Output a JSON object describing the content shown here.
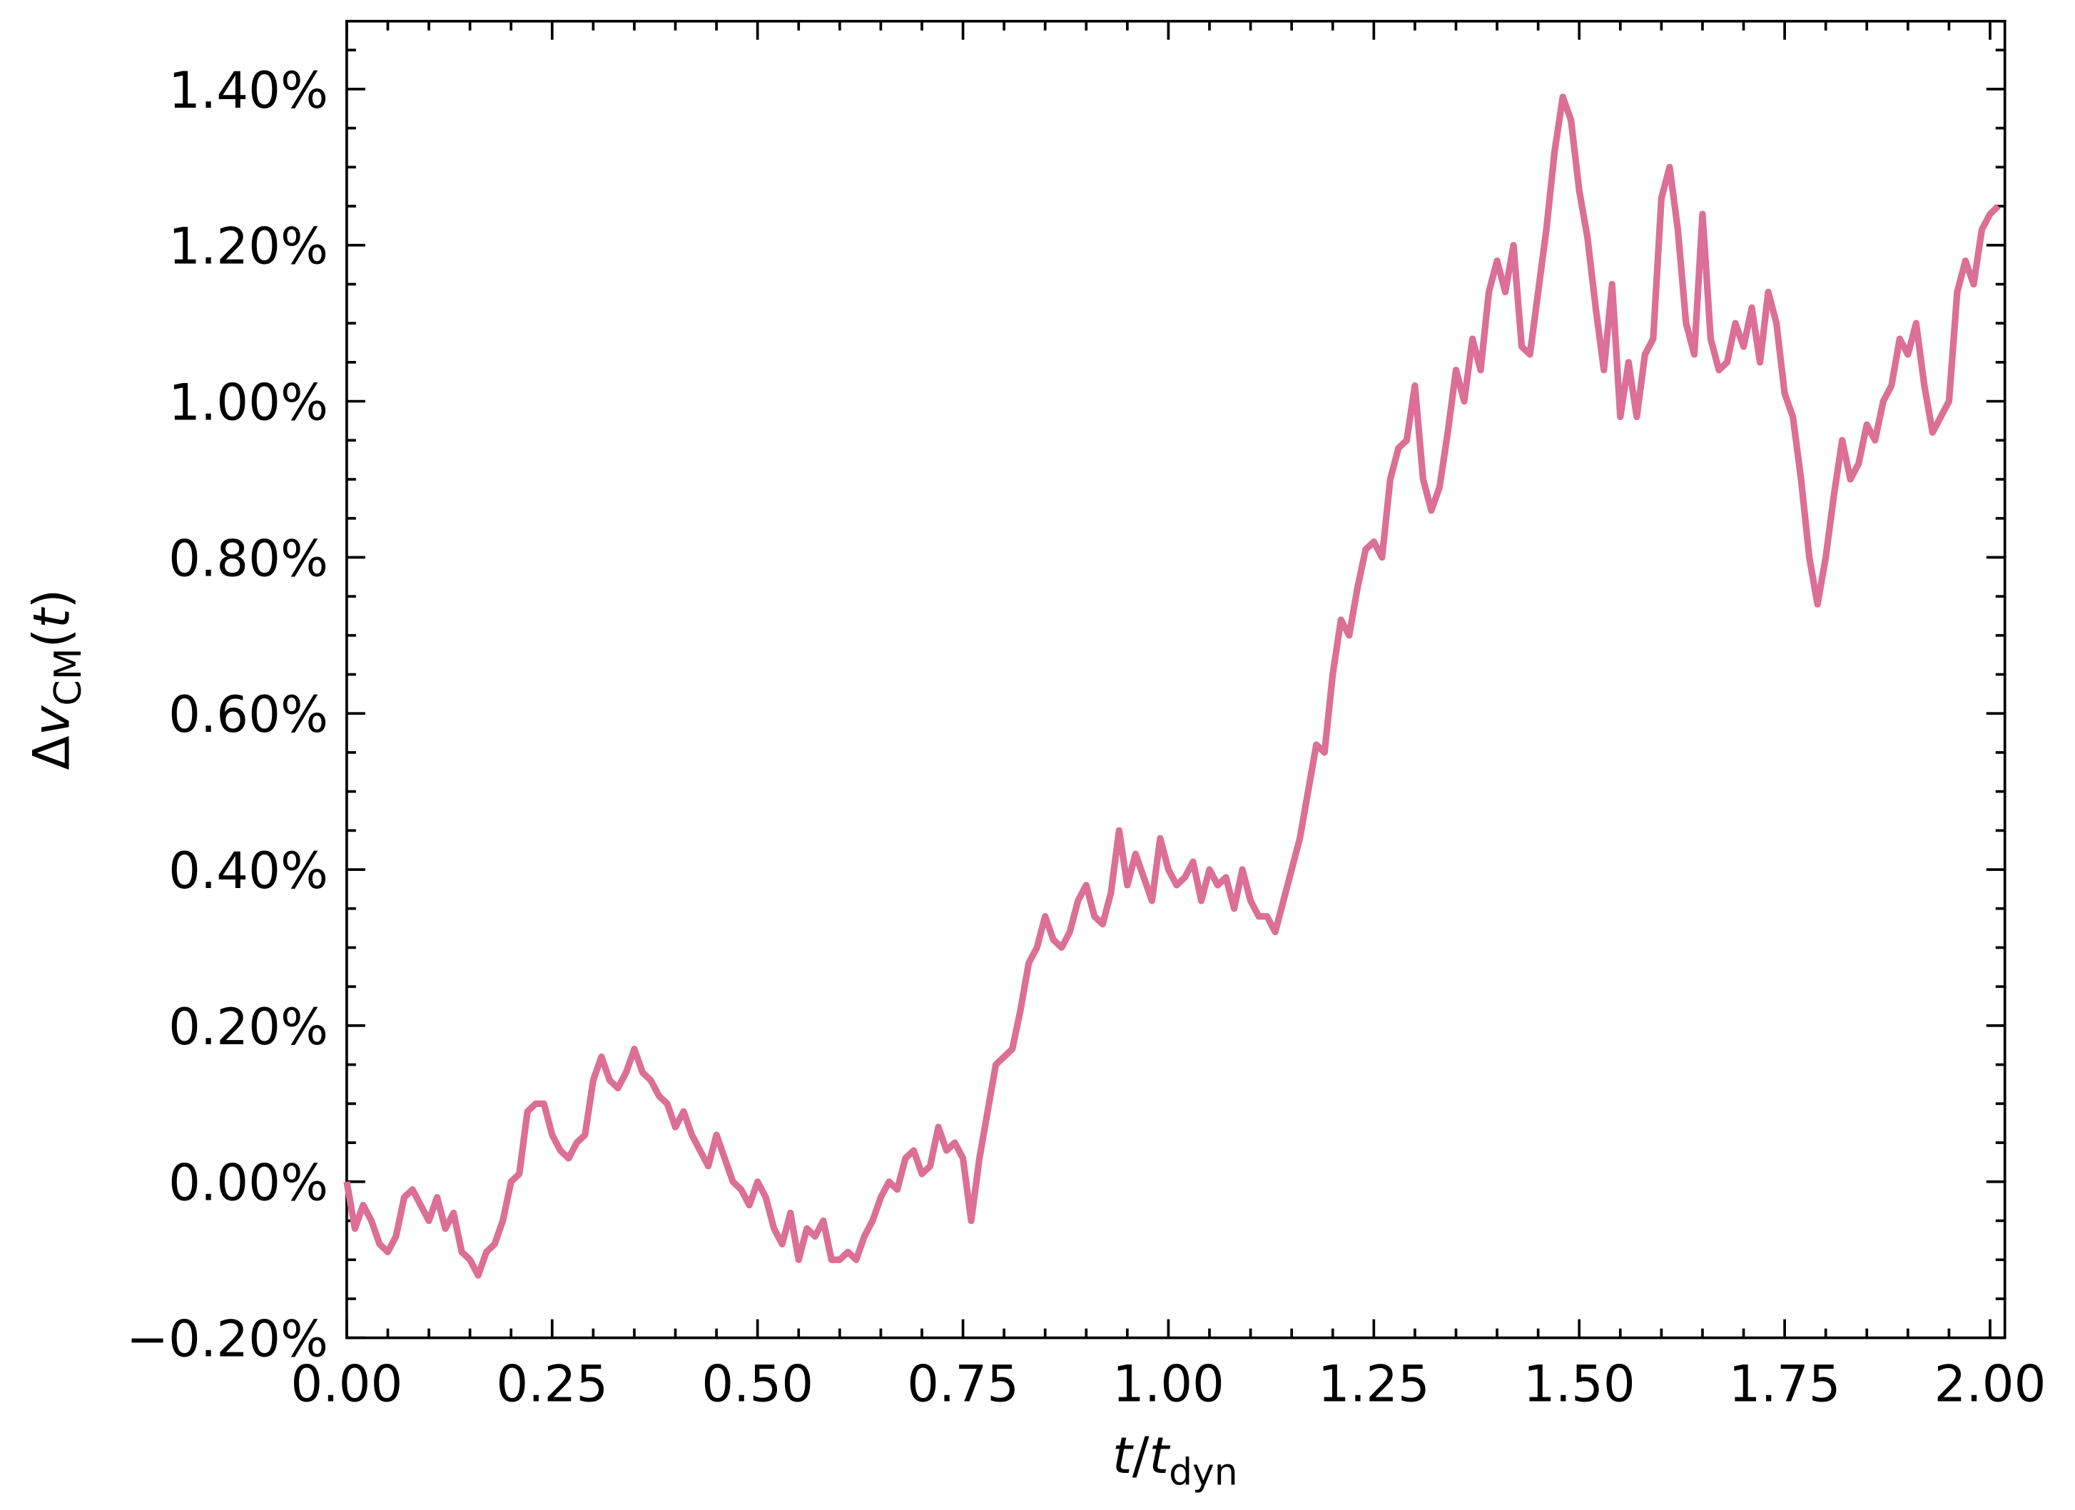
{
  "chart_data": {
    "type": "line",
    "xlabel": [
      "t",
      "/",
      "t",
      "dyn"
    ],
    "ylabel": [
      "Δ",
      "v",
      "CM",
      "(",
      "t",
      ")"
    ],
    "xlim": [
      0,
      2.018
    ],
    "ylim": [
      -0.2,
      1.487
    ],
    "xticks": [
      {
        "value": 0,
        "label": "0.00"
      },
      {
        "value": 0.25,
        "label": "0.25"
      },
      {
        "value": 0.5,
        "label": "0.50"
      },
      {
        "value": 0.75,
        "label": "0.75"
      },
      {
        "value": 1,
        "label": "1.00"
      },
      {
        "value": 1.25,
        "label": "1.25"
      },
      {
        "value": 1.5,
        "label": "1.50"
      },
      {
        "value": 1.75,
        "label": "1.75"
      },
      {
        "value": 2,
        "label": "2.00"
      }
    ],
    "yticks": [
      {
        "value": -0.2,
        "label": "−0.20%"
      },
      {
        "value": 0,
        "label": "0.00%"
      },
      {
        "value": 0.2,
        "label": "0.20%"
      },
      {
        "value": 0.4,
        "label": "0.40%"
      },
      {
        "value": 0.6,
        "label": "0.60%"
      },
      {
        "value": 0.8,
        "label": "0.80%"
      },
      {
        "value": 1,
        "label": "1.00%"
      },
      {
        "value": 1.2,
        "label": "1.20%"
      },
      {
        "value": 1.4,
        "label": "1.40%"
      }
    ],
    "xminorticks": [
      0.05,
      0.1,
      0.15,
      0.2,
      0.3,
      0.35,
      0.4,
      0.45,
      0.55,
      0.6,
      0.65,
      0.7,
      0.8,
      0.85,
      0.9,
      0.95,
      1.05,
      1.1,
      1.15,
      1.2,
      1.3,
      1.35,
      1.4,
      1.45,
      1.55,
      1.6,
      1.65,
      1.7,
      1.8,
      1.85,
      1.9,
      1.95
    ],
    "yminorticks": [
      -0.15,
      -0.1,
      -0.05,
      0.05,
      0.1,
      0.15,
      0.25,
      0.3,
      0.35,
      0.45,
      0.5,
      0.55,
      0.65,
      0.7,
      0.75,
      0.85,
      0.9,
      0.95,
      1.05,
      1.1,
      1.15,
      1.25,
      1.3,
      1.35,
      1.45
    ],
    "series": [
      {
        "color": "#dc6f95",
        "x": [
          0,
          0.01,
          0.02,
          0.03,
          0.04,
          0.05,
          0.06,
          0.07,
          0.08,
          0.09,
          0.1,
          0.11,
          0.12,
          0.13,
          0.14,
          0.15,
          0.16,
          0.17,
          0.18,
          0.19,
          0.2,
          0.21,
          0.22,
          0.23,
          0.24,
          0.25,
          0.26,
          0.27,
          0.28,
          0.29,
          0.3,
          0.31,
          0.32,
          0.33,
          0.34,
          0.35,
          0.36,
          0.37,
          0.38,
          0.39,
          0.4,
          0.41,
          0.42,
          0.43,
          0.44,
          0.45,
          0.46,
          0.47,
          0.48,
          0.49,
          0.5,
          0.51,
          0.52,
          0.53,
          0.54,
          0.55,
          0.56,
          0.57,
          0.58,
          0.59,
          0.6,
          0.61,
          0.62,
          0.63,
          0.64,
          0.65,
          0.66,
          0.67,
          0.68,
          0.69,
          0.7,
          0.71,
          0.72,
          0.73,
          0.74,
          0.75,
          0.76,
          0.77,
          0.78,
          0.79,
          0.8,
          0.81,
          0.82,
          0.83,
          0.84,
          0.85,
          0.86,
          0.87,
          0.88,
          0.89,
          0.9,
          0.91,
          0.92,
          0.93,
          0.94,
          0.95,
          0.96,
          0.97,
          0.98,
          0.99,
          1,
          1.01,
          1.02,
          1.03,
          1.04,
          1.05,
          1.06,
          1.07,
          1.08,
          1.09,
          1.1,
          1.11,
          1.12,
          1.13,
          1.14,
          1.15,
          1.16,
          1.17,
          1.18,
          1.19,
          1.2,
          1.21,
          1.22,
          1.23,
          1.24,
          1.25,
          1.26,
          1.27,
          1.28,
          1.29,
          1.3,
          1.31,
          1.32,
          1.33,
          1.34,
          1.35,
          1.36,
          1.37,
          1.38,
          1.39,
          1.4,
          1.41,
          1.42,
          1.43,
          1.44,
          1.45,
          1.46,
          1.47,
          1.48,
          1.49,
          1.5,
          1.51,
          1.52,
          1.53,
          1.54,
          1.55,
          1.56,
          1.57,
          1.58,
          1.59,
          1.6,
          1.61,
          1.62,
          1.63,
          1.64,
          1.65,
          1.66,
          1.67,
          1.68,
          1.69,
          1.7,
          1.71,
          1.72,
          1.73,
          1.74,
          1.75,
          1.76,
          1.77,
          1.78,
          1.79,
          1.8,
          1.81,
          1.82,
          1.83,
          1.84,
          1.85,
          1.86,
          1.87,
          1.88,
          1.89,
          1.9,
          1.91,
          1.92,
          1.93,
          1.94,
          1.95,
          1.96,
          1.97,
          1.98,
          1.99,
          2,
          2.01
        ],
        "values": [
          0,
          -0.06,
          -0.03,
          -0.05,
          -0.08,
          -0.09,
          -0.07,
          -0.02,
          -0.01,
          -0.03,
          -0.05,
          -0.02,
          -0.06,
          -0.04,
          -0.09,
          -0.1,
          -0.12,
          -0.09,
          -0.08,
          -0.05,
          0,
          0.01,
          0.09,
          0.1,
          0.1,
          0.06,
          0.04,
          0.03,
          0.05,
          0.06,
          0.13,
          0.16,
          0.13,
          0.12,
          0.14,
          0.17,
          0.14,
          0.13,
          0.11,
          0.1,
          0.07,
          0.09,
          0.06,
          0.04,
          0.02,
          0.06,
          0.03,
          0,
          -0.01,
          -0.03,
          0,
          -0.02,
          -0.06,
          -0.08,
          -0.04,
          -0.1,
          -0.06,
          -0.07,
          -0.05,
          -0.1,
          -0.1,
          -0.09,
          -0.1,
          -0.07,
          -0.05,
          -0.02,
          0,
          -0.01,
          0.03,
          0.04,
          0.01,
          0.02,
          0.07,
          0.04,
          0.05,
          0.03,
          -0.05,
          0.03,
          0.09,
          0.15,
          0.16,
          0.17,
          0.22,
          0.28,
          0.3,
          0.34,
          0.31,
          0.3,
          0.32,
          0.36,
          0.38,
          0.34,
          0.33,
          0.37,
          0.45,
          0.38,
          0.42,
          0.39,
          0.36,
          0.44,
          0.4,
          0.38,
          0.39,
          0.41,
          0.36,
          0.4,
          0.38,
          0.39,
          0.35,
          0.4,
          0.36,
          0.34,
          0.34,
          0.32,
          0.36,
          0.4,
          0.44,
          0.5,
          0.56,
          0.55,
          0.65,
          0.72,
          0.7,
          0.76,
          0.81,
          0.82,
          0.8,
          0.9,
          0.94,
          0.95,
          1.02,
          0.9,
          0.86,
          0.89,
          0.96,
          1.04,
          1,
          1.08,
          1.04,
          1.14,
          1.18,
          1.14,
          1.2,
          1.07,
          1.06,
          1.14,
          1.22,
          1.32,
          1.39,
          1.36,
          1.27,
          1.21,
          1.12,
          1.04,
          1.15,
          0.98,
          1.05,
          0.98,
          1.06,
          1.08,
          1.26,
          1.3,
          1.22,
          1.1,
          1.06,
          1.24,
          1.08,
          1.04,
          1.05,
          1.1,
          1.07,
          1.12,
          1.05,
          1.14,
          1.1,
          1.01,
          0.98,
          0.9,
          0.8,
          0.74,
          0.8,
          0.88,
          0.95,
          0.9,
          0.92,
          0.97,
          0.95,
          1,
          1.02,
          1.08,
          1.06,
          1.1,
          1.02,
          0.96,
          0.98,
          1,
          1.14,
          1.18,
          1.15,
          1.22,
          1.24,
          1.25
        ]
      }
    ]
  }
}
